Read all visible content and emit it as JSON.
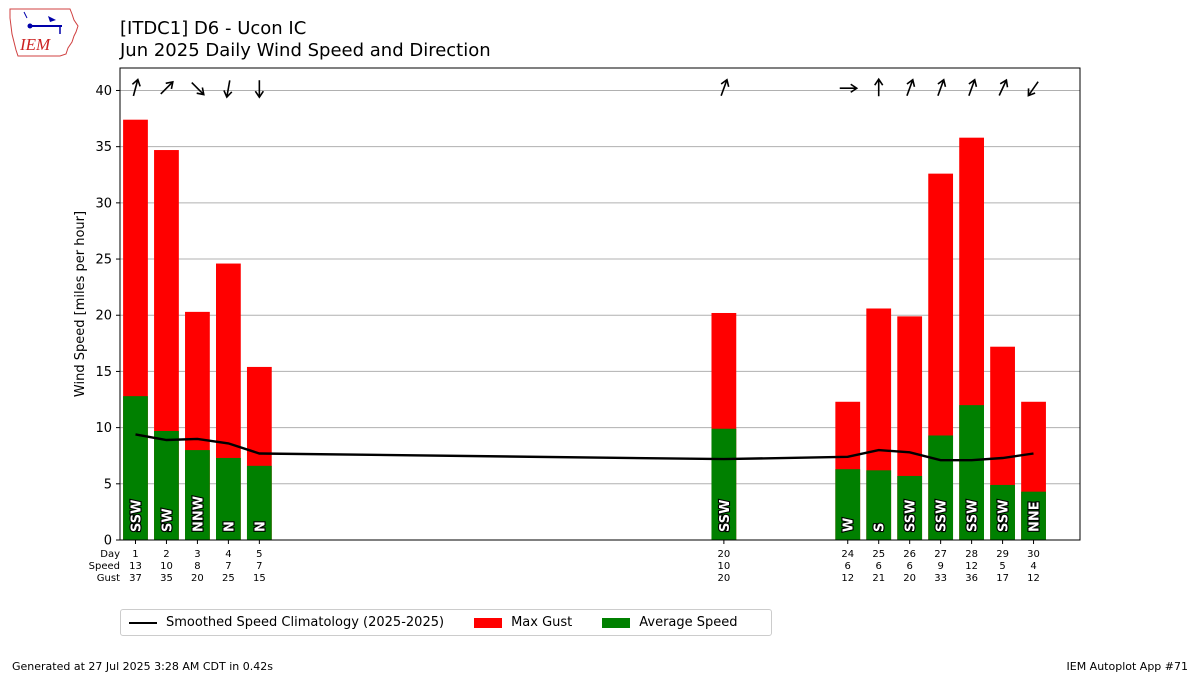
{
  "title": "[ITDC1] D6 - Ucon IC",
  "subtitle": "Jun 2025 Daily Wind Speed and Direction",
  "logo_text": "IEM",
  "footer_left": "Generated at 27 Jul 2025 3:28 AM CDT in 0.42s",
  "footer_right": "IEM Autoplot App #71",
  "legend": [
    {
      "label": "Smoothed Speed Climatology (2025-2025)",
      "color": "#000000",
      "kind": "line"
    },
    {
      "label": "Max Gust",
      "color": "#ff0000",
      "kind": "patch"
    },
    {
      "label": "Average Speed",
      "color": "#008000",
      "kind": "patch"
    }
  ],
  "table_row_labels": [
    "Day",
    "Speed",
    "Gust"
  ],
  "chart_data": {
    "type": "bar",
    "ylabel": "Wind Speed [miles per hour]",
    "ylim": [
      0,
      42
    ],
    "xlim": [
      0.5,
      31.5
    ],
    "yticks": [
      0,
      5,
      10,
      15,
      20,
      25,
      30,
      35,
      40
    ],
    "grid": true,
    "legend_position": "bottom-left",
    "days": [
      1,
      2,
      3,
      4,
      5,
      20,
      24,
      25,
      26,
      27,
      28,
      29,
      30
    ],
    "average_speed": [
      12.8,
      9.7,
      8.0,
      7.3,
      6.6,
      9.9,
      6.3,
      6.2,
      5.7,
      9.3,
      12.0,
      4.9,
      4.3
    ],
    "max_gust": [
      37.4,
      34.7,
      20.3,
      24.6,
      15.4,
      20.2,
      12.3,
      20.6,
      19.9,
      32.6,
      35.8,
      17.2,
      12.3
    ],
    "speed_labels": [
      13,
      10,
      8,
      7,
      7,
      10,
      6,
      6,
      6,
      9,
      12,
      5,
      4
    ],
    "gust_labels": [
      37,
      35,
      20,
      25,
      15,
      20,
      12,
      21,
      20,
      33,
      36,
      17,
      12
    ],
    "direction_labels": [
      "SSW",
      "SW",
      "NNW",
      "N",
      "N",
      "SSW",
      "W",
      "S",
      "SSW",
      "SSW",
      "SSW",
      "SSW",
      "NNE"
    ],
    "arrows_deg": [
      15,
      45,
      135,
      190,
      180,
      20,
      90,
      0,
      20,
      20,
      20,
      25,
      215
    ],
    "climatology": {
      "x": [
        1,
        2,
        3,
        4,
        5,
        20,
        24,
        25,
        26,
        27,
        28,
        29,
        30
      ],
      "y": [
        9.4,
        8.9,
        9.0,
        8.6,
        7.7,
        7.2,
        7.4,
        8.0,
        7.8,
        7.1,
        7.1,
        7.3,
        7.7
      ]
    }
  }
}
